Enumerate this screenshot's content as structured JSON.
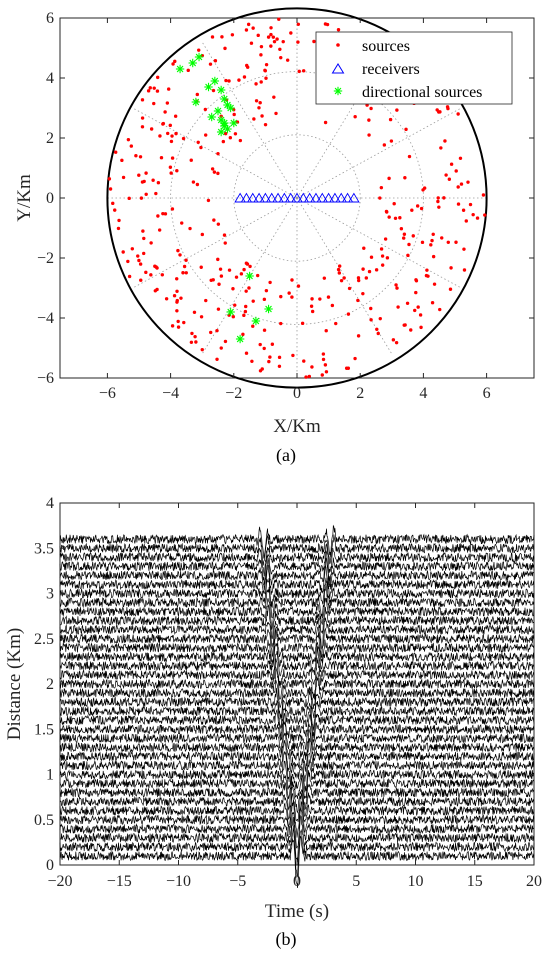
{
  "figure": {
    "panel_a_label": "(a)",
    "panel_b_label": "(b)"
  },
  "chart_data": [
    {
      "type": "scatter",
      "xlabel": "X/Km",
      "ylabel": "Y/Km",
      "xlim": [
        -7.5,
        7.5
      ],
      "ylim": [
        -6,
        6
      ],
      "xticks": [
        "−6",
        "−4",
        "−2",
        "0",
        "2",
        "4",
        "6"
      ],
      "yticks": [
        "−6",
        "−4",
        "−2",
        "0",
        "2",
        "4",
        "6"
      ],
      "boundary_radius_km": 6,
      "polar_grid_radii_km": [
        2,
        4,
        6
      ],
      "legend_position": "top-right",
      "series": [
        {
          "name": "sources",
          "marker": "dot",
          "color": "#ff0000",
          "count": 420,
          "distribution": "uniform random within annulus r 2.6–6 km",
          "sample_points": [
            [
              -5.9,
              0.3
            ],
            [
              -5.5,
              -1.8
            ],
            [
              -4.6,
              2.3
            ],
            [
              -3.2,
              -4.8
            ],
            [
              -1.1,
              -5.7
            ],
            [
              0.8,
              -5.9
            ],
            [
              3.6,
              -4.4
            ],
            [
              5.3,
              -2.4
            ],
            [
              5.9,
              0.1
            ],
            [
              5.1,
              2.8
            ],
            [
              3.4,
              4.7
            ],
            [
              0.9,
              5.8
            ],
            [
              -1.6,
              5.6
            ]
          ]
        },
        {
          "name": "receivers",
          "marker": "triangle",
          "color": "#0000ff",
          "x": [
            -1.8,
            -1.6,
            -1.4,
            -1.2,
            -1.0,
            -0.8,
            -0.6,
            -0.4,
            -0.2,
            0.0,
            0.2,
            0.4,
            0.6,
            0.8,
            1.0,
            1.2,
            1.4,
            1.6,
            1.8
          ],
          "y": [
            0,
            0,
            0,
            0,
            0,
            0,
            0,
            0,
            0,
            0,
            0,
            0,
            0,
            0,
            0,
            0,
            0,
            0,
            0
          ]
        },
        {
          "name": "directional sources",
          "marker": "asterisk",
          "color": "#00ff00",
          "x": [
            -3.7,
            -3.3,
            -3.1,
            -3.2,
            -2.8,
            -2.6,
            -2.4,
            -2.3,
            -2.2,
            -2.5,
            -2.1,
            -2.3,
            -2.7,
            -2.4,
            -2.2,
            -2.0,
            -2.4,
            -2.3,
            -1.5,
            -0.9,
            -1.3,
            -2.1,
            -1.8
          ],
          "y": [
            4.3,
            4.5,
            4.7,
            3.2,
            3.7,
            3.9,
            3.6,
            3.3,
            3.1,
            2.9,
            3.0,
            2.5,
            2.7,
            2.6,
            2.3,
            2.5,
            2.2,
            2.4,
            -2.6,
            -3.7,
            -4.1,
            -3.8,
            -4.7
          ]
        }
      ]
    },
    {
      "type": "line",
      "description_kind": "seismic wiggle traces",
      "xlabel": "Time (s)",
      "ylabel": "Distance (Km)",
      "xlim": [
        -20,
        20
      ],
      "ylim": [
        0,
        4
      ],
      "xticks": [
        "−20",
        "−15",
        "−10",
        "−5",
        "0",
        "5",
        "10",
        "15",
        "20"
      ],
      "yticks": [
        "0",
        "0.5",
        "1",
        "1.5",
        "2",
        "2.5",
        "3",
        "3.5",
        "4"
      ],
      "trace_offsets_km": [
        0.1,
        0.2,
        0.3,
        0.4,
        0.5,
        0.6,
        0.7,
        0.8,
        0.9,
        1.0,
        1.1,
        1.2,
        1.3,
        1.4,
        1.5,
        1.6,
        1.7,
        1.8,
        1.9,
        2.0,
        2.1,
        2.2,
        2.3,
        2.4,
        2.5,
        2.6,
        2.7,
        2.8,
        2.9,
        3.0,
        3.1,
        3.2,
        3.3,
        3.4,
        3.5,
        3.6
      ],
      "arrival_velocity_km_per_s": 1.25,
      "trace_color": "#000000"
    }
  ]
}
